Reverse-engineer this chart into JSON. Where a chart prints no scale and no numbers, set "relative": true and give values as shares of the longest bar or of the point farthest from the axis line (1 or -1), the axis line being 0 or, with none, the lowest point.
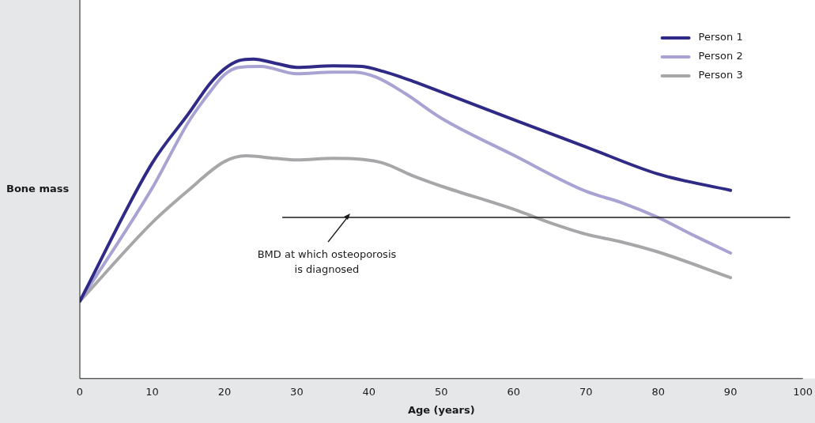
{
  "chart_data": {
    "type": "line",
    "relative": true,
    "xlabel": "Age (years)",
    "ylabel": "Bone mass",
    "xlim": [
      0,
      100
    ],
    "xticks": [
      0,
      10,
      20,
      30,
      40,
      50,
      60,
      70,
      80,
      90,
      100
    ],
    "legend": "top right",
    "grid": false,
    "marker": "none",
    "line_style": "solid",
    "series": [
      {
        "name": "Person 1",
        "color": "#2e2a85",
        "x": [
          0,
          10,
          15,
          18,
          20,
          22,
          24,
          27,
          30,
          35,
          39,
          42,
          46,
          50,
          60,
          70,
          80,
          90
        ],
        "values": [
          0.242,
          0.674,
          0.828,
          0.923,
          0.969,
          0.995,
          1,
          0.987,
          0.974,
          0.979,
          0.977,
          0.961,
          0.931,
          0.897,
          0.81,
          0.725,
          0.64,
          0.589
        ]
      },
      {
        "name": "Person 2",
        "color": "#a9a3d3",
        "x": [
          0,
          10,
          15,
          18,
          20,
          22,
          25,
          30,
          35,
          38,
          41,
          45,
          50,
          60,
          70,
          75,
          80,
          85,
          90
        ],
        "values": [
          0.242,
          0.596,
          0.802,
          0.897,
          0.951,
          0.974,
          0.977,
          0.954,
          0.959,
          0.959,
          0.943,
          0.892,
          0.815,
          0.699,
          0.586,
          0.55,
          0.504,
          0.447,
          0.393
        ]
      },
      {
        "name": "Person 3",
        "color": "#a7a7a9",
        "x": [
          0,
          10,
          15,
          20,
          23,
          27,
          30,
          35,
          39,
          42,
          46,
          50,
          60,
          65,
          70,
          75,
          80,
          90
        ],
        "values": [
          0.242,
          0.488,
          0.589,
          0.679,
          0.697,
          0.689,
          0.684,
          0.689,
          0.686,
          0.674,
          0.635,
          0.602,
          0.53,
          0.488,
          0.452,
          0.427,
          0.396,
          0.316
        ]
      }
    ],
    "ref_lines": [
      {
        "axis": "y",
        "value": 0.504,
        "label": null,
        "color": "#1a1a1a",
        "line_style": "solid"
      }
    ],
    "annotations": [
      {
        "text": "BMD at which osteoporosis\nis diagnosed",
        "x": 37,
        "y": 0.504
      }
    ]
  }
}
